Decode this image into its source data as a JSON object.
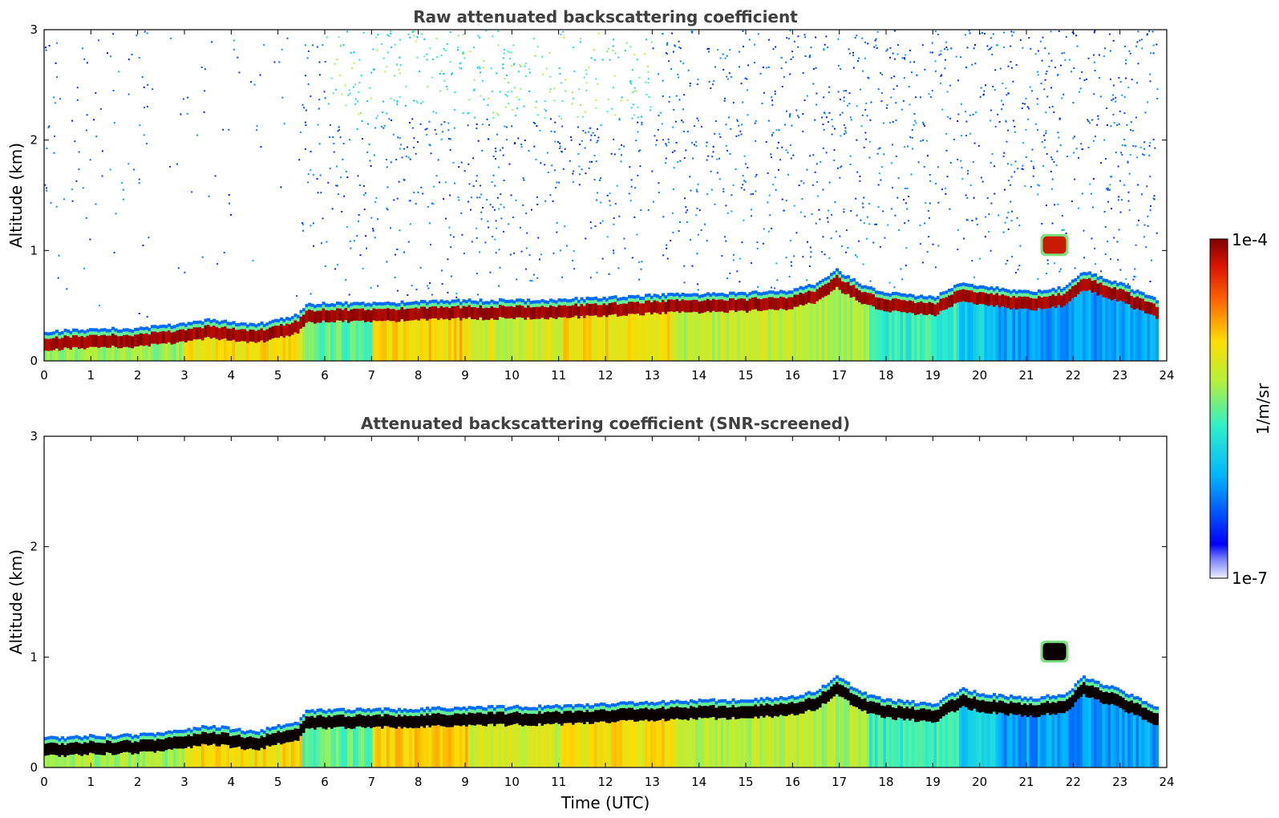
{
  "chart_data": [
    {
      "type": "heatmap",
      "title": "Raw attenuated backscattering coefficient",
      "xlabel": "",
      "ylabel": "Altitude (km)",
      "xlim": [
        0,
        24
      ],
      "ylim": [
        0,
        3
      ],
      "x_ticks": [
        "0",
        "1",
        "2",
        "3",
        "4",
        "5",
        "6",
        "7",
        "8",
        "9",
        "10",
        "11",
        "12",
        "13",
        "14",
        "15",
        "16",
        "17",
        "18",
        "19",
        "20",
        "21",
        "22",
        "23",
        "24"
      ],
      "y_ticks": [
        "0",
        "1",
        "2",
        "3"
      ],
      "variant": "raw",
      "layer_top_km": {
        "time_h": [
          0,
          1,
          2,
          2.8,
          3.5,
          4.5,
          5.4,
          5.6,
          7,
          9,
          11,
          13,
          15,
          15.9,
          16.5,
          16.9,
          17.5,
          18,
          19,
          19.6,
          20,
          21,
          21.8,
          22.2,
          23,
          23.8
        ],
        "values": [
          0.27,
          0.29,
          0.3,
          0.33,
          0.38,
          0.33,
          0.42,
          0.52,
          0.53,
          0.55,
          0.56,
          0.6,
          0.62,
          0.64,
          0.7,
          0.83,
          0.68,
          0.62,
          0.58,
          0.72,
          0.68,
          0.63,
          0.67,
          0.82,
          0.7,
          0.55
        ]
      },
      "cloud_patch": {
        "time_h": [
          21.3,
          21.9
        ],
        "altitude_km": [
          0.95,
          1.15
        ]
      },
      "colorbar": {
        "ticks": [
          "1e-4",
          "1e-7"
        ],
        "label": "1/m/sr",
        "scale": "log",
        "range": [
          1e-07,
          0.0001
        ]
      }
    },
    {
      "type": "heatmap",
      "title": "Attenuated backscattering coefficient (SNR-screened)",
      "xlabel": "Time (UTC)",
      "ylabel": "Altitude (km)",
      "xlim": [
        0,
        24
      ],
      "ylim": [
        0,
        3
      ],
      "x_ticks": [
        "0",
        "1",
        "2",
        "3",
        "4",
        "5",
        "6",
        "7",
        "8",
        "9",
        "10",
        "11",
        "12",
        "13",
        "14",
        "15",
        "16",
        "17",
        "18",
        "19",
        "20",
        "21",
        "22",
        "23",
        "24"
      ],
      "y_ticks": [
        "0",
        "1",
        "2",
        "3"
      ],
      "variant": "screened",
      "layer_top_km": {
        "time_h": [
          0,
          1,
          2,
          2.8,
          3.5,
          4.5,
          5.4,
          5.6,
          7,
          9,
          11,
          13,
          15,
          15.9,
          16.5,
          16.9,
          17.5,
          18,
          19,
          19.6,
          20,
          21,
          21.8,
          22.2,
          23,
          23.8
        ],
        "values": [
          0.27,
          0.29,
          0.3,
          0.33,
          0.38,
          0.33,
          0.42,
          0.52,
          0.53,
          0.55,
          0.56,
          0.6,
          0.62,
          0.64,
          0.7,
          0.83,
          0.68,
          0.62,
          0.58,
          0.72,
          0.68,
          0.63,
          0.67,
          0.82,
          0.7,
          0.55
        ]
      },
      "cloud_patch": {
        "time_h": [
          21.3,
          21.9
        ],
        "altitude_km": [
          0.95,
          1.15
        ]
      }
    }
  ]
}
